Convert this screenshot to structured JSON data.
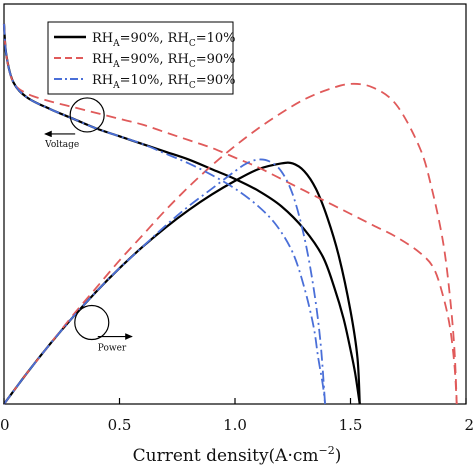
{
  "chart_data": {
    "type": "line",
    "title": "",
    "xlabel": "Current density(A·cm",
    "xlabel_sup": "−2",
    "xlabel_close": ")",
    "xlim": [
      0,
      2.0
    ],
    "x_ticks": [
      0,
      0.5,
      1.0,
      1.5,
      2.0
    ],
    "x_tick_labels": [
      "0",
      "0.5",
      "1.0",
      "1.5",
      "2"
    ],
    "legend": {
      "position": "top-left",
      "frame": true
    },
    "series": [
      {
        "group": "A",
        "label_parts": [
          "RH",
          "A",
          "=90%,  RH",
          "C",
          "=10%"
        ],
        "color": "#000000",
        "dash": "solid",
        "voltage": [
          [
            0,
            0.98
          ],
          [
            0.01,
            0.9
          ],
          [
            0.04,
            0.83
          ],
          [
            0.1,
            0.79
          ],
          [
            0.2,
            0.76
          ],
          [
            0.3,
            0.735
          ],
          [
            0.4,
            0.71
          ],
          [
            0.5,
            0.69
          ],
          [
            0.6,
            0.67
          ],
          [
            0.7,
            0.65
          ],
          [
            0.8,
            0.63
          ],
          [
            0.9,
            0.605
          ],
          [
            1.0,
            0.58
          ],
          [
            1.1,
            0.55
          ],
          [
            1.2,
            0.51
          ],
          [
            1.3,
            0.45
          ],
          [
            1.38,
            0.38
          ],
          [
            1.43,
            0.3
          ],
          [
            1.47,
            0.22
          ],
          [
            1.5,
            0.14
          ],
          [
            1.52,
            0.08
          ],
          [
            1.54,
            0.0
          ]
        ],
        "power": [
          [
            0,
            0.0
          ],
          [
            0.1,
            0.08
          ],
          [
            0.2,
            0.155
          ],
          [
            0.3,
            0.225
          ],
          [
            0.4,
            0.29
          ],
          [
            0.5,
            0.35
          ],
          [
            0.6,
            0.405
          ],
          [
            0.7,
            0.455
          ],
          [
            0.8,
            0.5
          ],
          [
            0.9,
            0.54
          ],
          [
            1.0,
            0.575
          ],
          [
            1.1,
            0.605
          ],
          [
            1.2,
            0.62
          ],
          [
            1.25,
            0.62
          ],
          [
            1.3,
            0.6
          ],
          [
            1.35,
            0.555
          ],
          [
            1.4,
            0.48
          ],
          [
            1.45,
            0.38
          ],
          [
            1.5,
            0.24
          ],
          [
            1.53,
            0.12
          ],
          [
            1.54,
            0.0
          ]
        ]
      },
      {
        "group": "B",
        "label_parts": [
          "RH",
          "A",
          "=90%,  RH",
          "C",
          "=90%"
        ],
        "color": "#e05a5a",
        "dash": "dashed",
        "voltage": [
          [
            0,
            0.98
          ],
          [
            0.01,
            0.9
          ],
          [
            0.04,
            0.83
          ],
          [
            0.1,
            0.8
          ],
          [
            0.2,
            0.78
          ],
          [
            0.3,
            0.765
          ],
          [
            0.4,
            0.75
          ],
          [
            0.5,
            0.735
          ],
          [
            0.6,
            0.72
          ],
          [
            0.7,
            0.7
          ],
          [
            0.8,
            0.68
          ],
          [
            0.9,
            0.66
          ],
          [
            1.0,
            0.635
          ],
          [
            1.1,
            0.61
          ],
          [
            1.2,
            0.58
          ],
          [
            1.3,
            0.55
          ],
          [
            1.4,
            0.52
          ],
          [
            1.5,
            0.49
          ],
          [
            1.6,
            0.46
          ],
          [
            1.7,
            0.43
          ],
          [
            1.8,
            0.39
          ],
          [
            1.86,
            0.35
          ],
          [
            1.9,
            0.28
          ],
          [
            1.93,
            0.2
          ],
          [
            1.95,
            0.1
          ],
          [
            1.96,
            0.0
          ]
        ],
        "power": [
          [
            0,
            0.0
          ],
          [
            0.1,
            0.08
          ],
          [
            0.2,
            0.155
          ],
          [
            0.3,
            0.23
          ],
          [
            0.4,
            0.3
          ],
          [
            0.5,
            0.37
          ],
          [
            0.6,
            0.435
          ],
          [
            0.7,
            0.5
          ],
          [
            0.8,
            0.56
          ],
          [
            0.9,
            0.615
          ],
          [
            1.0,
            0.665
          ],
          [
            1.1,
            0.71
          ],
          [
            1.2,
            0.75
          ],
          [
            1.3,
            0.785
          ],
          [
            1.4,
            0.81
          ],
          [
            1.5,
            0.825
          ],
          [
            1.6,
            0.815
          ],
          [
            1.7,
            0.77
          ],
          [
            1.8,
            0.66
          ],
          [
            1.85,
            0.56
          ],
          [
            1.9,
            0.42
          ],
          [
            1.93,
            0.28
          ],
          [
            1.95,
            0.14
          ],
          [
            1.96,
            0.0
          ]
        ]
      },
      {
        "group": "C",
        "label_parts": [
          "RH",
          "A",
          "=10%,  RH",
          "C",
          "=90%"
        ],
        "color": "#4a6fd8",
        "dash": "dashdot",
        "voltage": [
          [
            0,
            0.98
          ],
          [
            0.01,
            0.9
          ],
          [
            0.04,
            0.83
          ],
          [
            0.1,
            0.79
          ],
          [
            0.2,
            0.76
          ],
          [
            0.3,
            0.735
          ],
          [
            0.4,
            0.71
          ],
          [
            0.5,
            0.69
          ],
          [
            0.6,
            0.67
          ],
          [
            0.7,
            0.645
          ],
          [
            0.8,
            0.62
          ],
          [
            0.9,
            0.59
          ],
          [
            1.0,
            0.555
          ],
          [
            1.1,
            0.51
          ],
          [
            1.18,
            0.46
          ],
          [
            1.25,
            0.39
          ],
          [
            1.3,
            0.3
          ],
          [
            1.34,
            0.2
          ],
          [
            1.36,
            0.12
          ],
          [
            1.38,
            0.05
          ],
          [
            1.39,
            0.0
          ]
        ],
        "power": [
          [
            0,
            0.0
          ],
          [
            0.1,
            0.08
          ],
          [
            0.2,
            0.155
          ],
          [
            0.3,
            0.225
          ],
          [
            0.4,
            0.29
          ],
          [
            0.5,
            0.35
          ],
          [
            0.6,
            0.405
          ],
          [
            0.7,
            0.46
          ],
          [
            0.8,
            0.51
          ],
          [
            0.9,
            0.555
          ],
          [
            1.0,
            0.6
          ],
          [
            1.05,
            0.62
          ],
          [
            1.1,
            0.63
          ],
          [
            1.15,
            0.625
          ],
          [
            1.2,
            0.6
          ],
          [
            1.25,
            0.54
          ],
          [
            1.3,
            0.43
          ],
          [
            1.34,
            0.3
          ],
          [
            1.37,
            0.16
          ],
          [
            1.39,
            0.0
          ]
        ]
      }
    ],
    "annotations": [
      {
        "text": "Voltage",
        "circle": [
          0.36,
          0.745
        ],
        "arrow": "left"
      },
      {
        "text": "Power",
        "circle": [
          0.38,
          0.21
        ],
        "arrow": "right"
      }
    ]
  }
}
